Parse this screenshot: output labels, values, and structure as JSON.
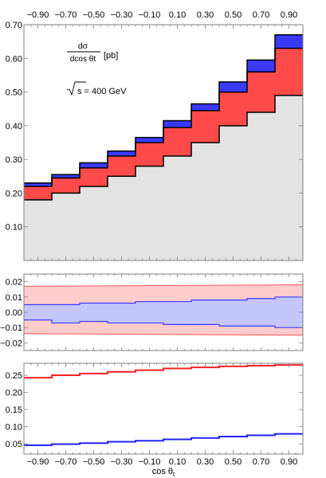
{
  "chart_data": [
    {
      "type": "step",
      "panel": "main",
      "annotation_formula": "dσ / dcos θt [pb]",
      "annotation_formula_num": "dσ",
      "annotation_formula_den": "dcos θt",
      "annotation_formula_unit": "[pb]",
      "annotation_energy": "√s = 400 GeV",
      "annotation_energy_text": "s = 400 GeV",
      "bin_edges": [
        -1.0,
        -0.8,
        -0.6,
        -0.4,
        -0.2,
        0.0,
        0.2,
        0.4,
        0.6,
        0.8,
        1.0
      ],
      "top_tick_labels": [
        "−0.90",
        "−0.70",
        "−0.50",
        "−0.30",
        "−0.10",
        "0.10",
        "0.30",
        "0.50",
        "0.70",
        "0.90"
      ],
      "y_tick_labels": [
        "0.10",
        "0.20",
        "0.30",
        "0.40",
        "0.50",
        "0.60",
        "0.70"
      ],
      "y_ticks": [
        0.1,
        0.2,
        0.3,
        0.4,
        0.5,
        0.6,
        0.7
      ],
      "xlim": [
        -1.0,
        1.0
      ],
      "ylim": [
        0.0,
        0.7
      ],
      "series": [
        {
          "role": "base",
          "values": [
            0.18,
            0.2,
            0.22,
            0.25,
            0.28,
            0.31,
            0.35,
            0.4,
            0.44,
            0.49
          ]
        },
        {
          "role": "red-band-top",
          "values": [
            0.22,
            0.245,
            0.275,
            0.31,
            0.35,
            0.395,
            0.445,
            0.5,
            0.56,
            0.63
          ]
        },
        {
          "role": "blue-band-top",
          "values": [
            0.23,
            0.255,
            0.29,
            0.325,
            0.365,
            0.415,
            0.465,
            0.53,
            0.595,
            0.67
          ]
        }
      ],
      "colors": {
        "base_fill": "#e3e3e3",
        "red": "#ff4a4a",
        "blue": "#3a3aff",
        "line": "#000000"
      }
    },
    {
      "type": "band",
      "panel": "ratio",
      "y_tick_labels": [
        "0.02",
        "0.01",
        "0.00",
        "−0.01",
        "−0.02"
      ],
      "y_ticks": [
        0.02,
        0.01,
        0.0,
        -0.01,
        -0.02
      ],
      "ylim": [
        -0.025,
        0.025
      ],
      "red_band": {
        "upper": [
          0.017,
          0.018
        ],
        "lower": [
          -0.014,
          -0.015
        ]
      },
      "blue_band": {
        "upper": [
          0.005,
          0.005,
          0.006,
          0.006,
          0.007,
          0.007,
          0.008,
          0.008,
          0.009,
          0.01
        ],
        "lower": [
          -0.005,
          -0.007,
          -0.006,
          -0.007,
          -0.007,
          -0.008,
          -0.008,
          -0.009,
          -0.009,
          -0.01
        ]
      },
      "colors": {
        "red_fill": "#ffcccc",
        "red_line": "#ff5555",
        "blue_fill": "#c6c6ff",
        "blue_line": "#3a3aff"
      }
    },
    {
      "type": "step",
      "panel": "bottom",
      "xlabel": "cos θt",
      "xlabel_main": "cos θ",
      "xlabel_sub": "t",
      "x_tick_labels": [
        "−0.90",
        "−0.70",
        "−0.50",
        "−0.30",
        "−0.10",
        "0.10",
        "0.30",
        "0.50",
        "0.70",
        "0.90"
      ],
      "y_tick_labels": [
        "0.25",
        "0.20",
        "0.15",
        "0.10",
        "0.05"
      ],
      "y_ticks": [
        0.25,
        0.2,
        0.15,
        0.1,
        0.05
      ],
      "ylim": [
        0.02,
        0.285
      ],
      "series": [
        {
          "role": "red",
          "values": [
            0.243,
            0.25,
            0.255,
            0.26,
            0.265,
            0.27,
            0.273,
            0.276,
            0.278,
            0.28
          ]
        },
        {
          "role": "blue",
          "values": [
            0.046,
            0.049,
            0.052,
            0.056,
            0.059,
            0.063,
            0.067,
            0.071,
            0.075,
            0.079
          ]
        }
      ],
      "colors": {
        "red": "#ff2020",
        "blue": "#2020ff"
      }
    }
  ]
}
